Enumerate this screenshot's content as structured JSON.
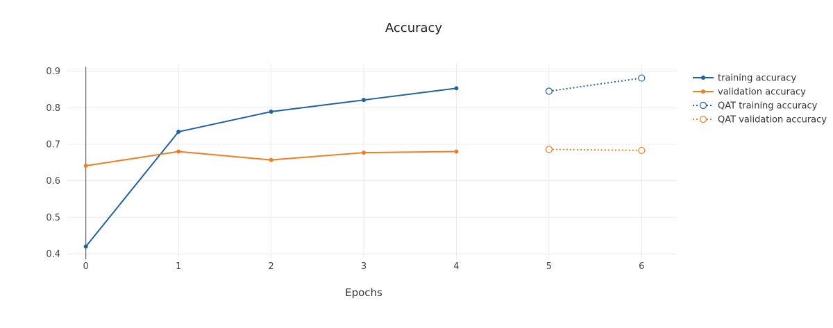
{
  "chart_data": {
    "type": "line",
    "title": "Accuracy",
    "xlabel": "Epochs",
    "ylabel": "",
    "xlim": [
      -0.2,
      6.38
    ],
    "ylim": [
      0.385,
      0.92
    ],
    "x_ticks": [
      0,
      1,
      2,
      3,
      4,
      5,
      6
    ],
    "y_ticks": [
      0.4,
      0.5,
      0.6,
      0.7,
      0.8,
      0.9
    ],
    "y_tick_labels": [
      "0.4",
      "0.5",
      "0.6",
      "0.7",
      "0.8",
      "0.9"
    ],
    "grid": true,
    "legend_position": "right",
    "series": [
      {
        "name": "training accuracy",
        "color": "#1f5fa6",
        "line_style": "solid",
        "marker": "filled-circle",
        "x": [
          0,
          1,
          2,
          3,
          4
        ],
        "y": [
          0.42,
          0.734,
          0.789,
          0.821,
          0.853
        ]
      },
      {
        "name": "validation accuracy",
        "color": "#f07f24",
        "line_style": "solid",
        "marker": "filled-circle",
        "x": [
          0,
          1,
          2,
          3,
          4
        ],
        "y": [
          0.641,
          0.68,
          0.657,
          0.677,
          0.68
        ]
      },
      {
        "name": "QAT training accuracy",
        "color": "#1f5fa6",
        "line_style": "dotted",
        "marker": "open-circle",
        "x": [
          5,
          6
        ],
        "y": [
          0.845,
          0.881
        ]
      },
      {
        "name": "QAT validation accuracy",
        "color": "#f07f24",
        "line_style": "dotted",
        "marker": "open-circle",
        "x": [
          5,
          6
        ],
        "y": [
          0.686,
          0.683
        ]
      }
    ]
  }
}
